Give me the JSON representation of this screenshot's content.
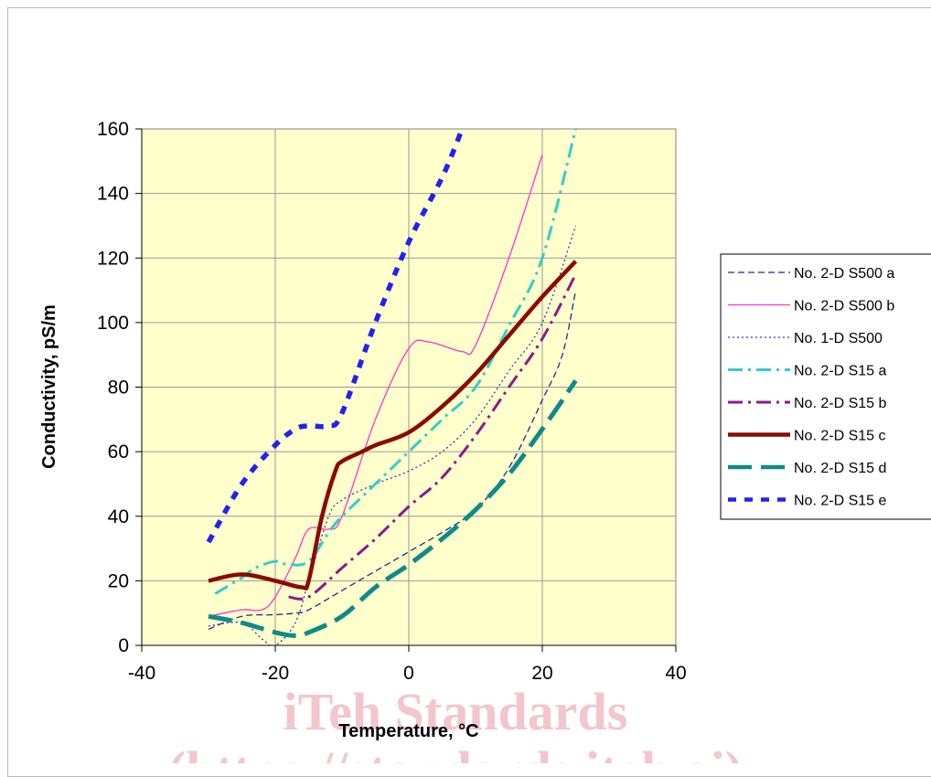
{
  "chart_data": {
    "type": "line",
    "title": "",
    "xlabel": "Temperature, °C",
    "ylabel": "Conductivity, pS/m",
    "xlim": [
      -40,
      40
    ],
    "ylim": [
      0,
      160
    ],
    "x_ticks": [
      "-40",
      "-20",
      "0",
      "20",
      "40"
    ],
    "y_ticks": [
      "0",
      "20",
      "40",
      "60",
      "80",
      "100",
      "120",
      "140",
      "160"
    ],
    "grid": "vertical and horizontal at major ticks",
    "plot_background": "#ffffcc",
    "legend_position": "right",
    "series": [
      {
        "name": "No. 2-D S500 a",
        "color": "#1f2a8c",
        "style": "dashed-thin",
        "x": [
          -30,
          -25,
          -20,
          -17,
          -15,
          -10,
          -5,
          0,
          5,
          10,
          15,
          20,
          23,
          25
        ],
        "y": [
          5,
          9,
          9.5,
          10,
          11,
          17,
          23,
          29,
          35,
          42,
          55,
          76,
          90,
          110
        ]
      },
      {
        "name": "No. 2-D S500 b",
        "color": "#ff33cc",
        "style": "solid-thin",
        "x": [
          -30,
          -25,
          -22,
          -20,
          -17,
          -15,
          -12,
          -10,
          -5,
          0,
          3,
          8,
          10,
          15,
          20
        ],
        "y": [
          9,
          11,
          11,
          15,
          27,
          36,
          36,
          40,
          70,
          92,
          94,
          91,
          93,
          120,
          152
        ]
      },
      {
        "name": "No. 1-D S500",
        "color": "#3333cc",
        "style": "dotted-thin",
        "x": [
          -30,
          -25,
          -22,
          -20,
          -17,
          -15,
          -12,
          -10,
          -5,
          0,
          5,
          10,
          15,
          20,
          25
        ],
        "y": [
          6,
          7,
          2,
          0,
          7,
          20,
          40,
          45,
          50,
          54,
          60,
          70,
          85,
          100,
          130
        ]
      },
      {
        "name": "No. 2-D S15 a",
        "color": "#33cccc",
        "style": "dashdot-thick",
        "x": [
          -29,
          -25,
          -23,
          -20,
          -18,
          -15,
          -12,
          -10,
          -5,
          0,
          5,
          10,
          15,
          20,
          25
        ],
        "y": [
          16,
          21,
          24,
          26,
          25,
          26,
          35,
          40,
          50,
          60,
          70,
          80,
          99,
          120,
          160
        ]
      },
      {
        "name": "No. 2-D S15 b",
        "color": "#8b1a8b",
        "style": "dashdot-thick",
        "x": [
          -18,
          -15,
          -10,
          -5,
          0,
          5,
          10,
          15,
          20,
          25
        ],
        "y": [
          15,
          15,
          24,
          33,
          43,
          52,
          65,
          80,
          95,
          115
        ]
      },
      {
        "name": "No. 2-D S15 c",
        "color": "#8b0a00",
        "style": "solid-thick",
        "x": [
          -30,
          -25,
          -20,
          -16,
          -15,
          -13,
          -11,
          -10,
          -7,
          -5,
          0,
          5,
          10,
          15,
          20,
          25
        ],
        "y": [
          20,
          22,
          20,
          18,
          20,
          40,
          54,
          57,
          60,
          62,
          66,
          74,
          84,
          96,
          108,
          119
        ]
      },
      {
        "name": "No. 2-D S15 d",
        "color": "#0f8a8a",
        "style": "longdash-thick",
        "x": [
          -30,
          -25,
          -20,
          -17,
          -15,
          -10,
          -5,
          0,
          5,
          10,
          15,
          20,
          25
        ],
        "y": [
          9,
          7,
          4,
          3,
          4,
          9,
          18,
          25,
          33,
          42,
          53,
          67,
          82
        ]
      },
      {
        "name": "No. 2-D S15 e",
        "color": "#2222ee",
        "style": "dotted-thick",
        "x": [
          -30,
          -25,
          -20,
          -17,
          -15,
          -12,
          -10,
          -5,
          0,
          5,
          8
        ],
        "y": [
          32,
          50,
          62,
          67,
          68,
          68,
          72,
          100,
          125,
          145,
          160
        ]
      }
    ]
  },
  "watermark": {
    "line1": "iTeh Standards",
    "line2": "(https://standards.iteh.ai)"
  }
}
